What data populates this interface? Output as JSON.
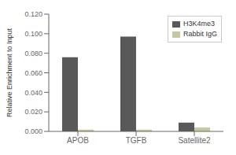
{
  "chart_data": {
    "type": "bar",
    "categories": [
      "APOB",
      "TGFB",
      "Satellite2"
    ],
    "series": [
      {
        "name": "H3K4me3",
        "color": "#595959",
        "values": [
          0.076,
          0.097,
          0.009
        ]
      },
      {
        "name": "Rabbit IgG",
        "color": "#c8c8a0",
        "values": [
          0.0018,
          0.0018,
          0.004
        ]
      }
    ],
    "ylabel": "Relative Enrichment to Input",
    "ylim": [
      0,
      0.12
    ],
    "yticks": [
      {
        "value": 0,
        "label": "0.000"
      },
      {
        "value": 0.02,
        "label": "0.020"
      },
      {
        "value": 0.04,
        "label": "0.040"
      },
      {
        "value": 0.06,
        "label": "0.060"
      },
      {
        "value": 0.08,
        "label": "0.080"
      },
      {
        "value": 0.1,
        "label": "0.100"
      },
      {
        "value": 0.12,
        "label": "0.120"
      }
    ],
    "legend": "upper right",
    "grid": false
  }
}
